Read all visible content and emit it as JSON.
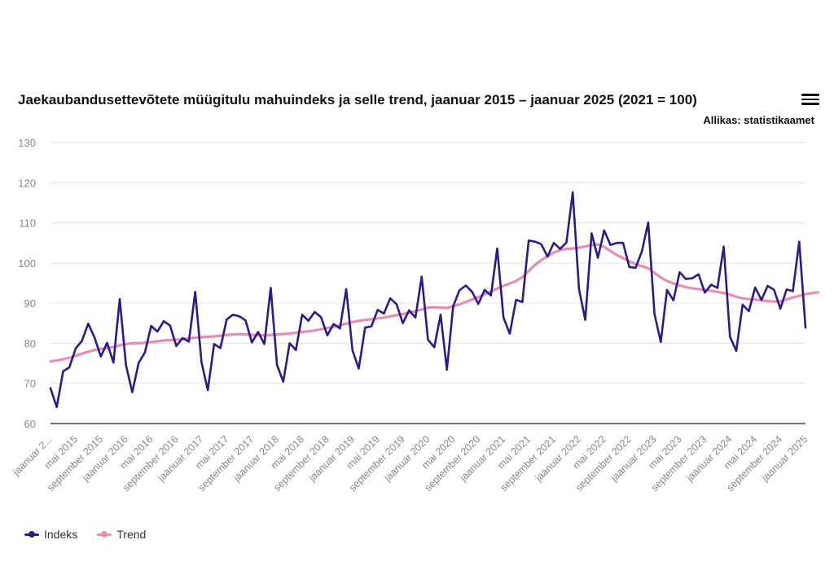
{
  "title": "Jaekaubandusettevõtete müügitulu mahuindeks ja selle trend, jaanuar 2015 – jaanuar 2025 (2021 = 100)",
  "source": "Allikas: statistikaamet",
  "menu_icon": "hamburger-menu-icon",
  "legend": [
    {
      "label": "Indeks",
      "color": "#2e1a87"
    },
    {
      "label": "Trend",
      "color": "#e58fb1"
    }
  ],
  "chart_data": {
    "type": "line",
    "title": "Jaekaubandusettevõtete müügitulu mahuindeks ja selle trend, jaanuar 2015 – jaanuar 2025 (2021 = 100)",
    "xlabel": "",
    "ylabel": "",
    "ylim": [
      60,
      130
    ],
    "yticks": [
      60,
      70,
      80,
      90,
      100,
      110,
      120,
      130
    ],
    "grid": true,
    "legend_position": "bottom-left",
    "x_start": "jaanuar 2015",
    "x_end": "jaanuar 2025",
    "x_tick_labels": [
      "jaanuar 2...",
      "mai 2015",
      "september 2015",
      "jaanuar 2016",
      "mai 2016",
      "september 2016",
      "jaanuar 2017",
      "mai 2017",
      "september 2017",
      "jaanuar 2018",
      "mai 2018",
      "september 2018",
      "jaanuar 2019",
      "mai 2019",
      "september 2019",
      "jaanuar 2020",
      "mai 2020",
      "september 2020",
      "jaanuar 2021",
      "mai 2021",
      "september 2021",
      "jaanuar 2022",
      "mai 2022",
      "september 2022",
      "jaanuar 2023",
      "mai 2023",
      "september 2023",
      "jaanuar 2024",
      "mai 2024",
      "september 2024",
      "jaanuar 2025"
    ],
    "series": [
      {
        "name": "Indeks",
        "color": "#2e1a87",
        "values": [
          68.8,
          64.1,
          73.0,
          74.0,
          78.7,
          80.6,
          84.9,
          81.4,
          76.7,
          80.1,
          75.2,
          91.0,
          74.5,
          67.8,
          75.1,
          77.7,
          84.3,
          82.9,
          85.5,
          84.4,
          79.3,
          81.3,
          80.4,
          92.8,
          75.3,
          68.3,
          79.8,
          78.8,
          85.9,
          87.1,
          86.7,
          85.7,
          80.2,
          82.8,
          79.8,
          93.8,
          74.6,
          70.4,
          80.0,
          78.3,
          87.1,
          85.6,
          87.8,
          86.5,
          82.0,
          84.8,
          83.7,
          93.5,
          78.2,
          73.7,
          83.9,
          84.2,
          88.3,
          87.4,
          91.2,
          89.7,
          85.0,
          88.2,
          86.4,
          96.6,
          80.9,
          79.0,
          87.1,
          73.4,
          89.2,
          93.2,
          94.4,
          92.8,
          89.8,
          93.3,
          91.9,
          103.6,
          86.4,
          82.4,
          90.8,
          90.3,
          105.6,
          105.3,
          104.7,
          101.6,
          105.0,
          103.5,
          105.1,
          117.6,
          93.5,
          85.8,
          107.4,
          101.3,
          108.1,
          104.5,
          105.0,
          105.0,
          99.0,
          98.8,
          102.9,
          110.1,
          87.3,
          80.3,
          93.3,
          90.7,
          97.7,
          96.0,
          96.2,
          97.2,
          92.6,
          94.6,
          93.8,
          104.1,
          81.6,
          78.1,
          89.6,
          88.0,
          93.9,
          90.8,
          94.3,
          93.3,
          88.6,
          93.4,
          93.0,
          105.3,
          83.9
        ]
      },
      {
        "name": "Trend",
        "color": "#e58fb1",
        "values": [
          75.5,
          75.7,
          76.0,
          76.4,
          76.9,
          77.4,
          77.9,
          78.3,
          78.6,
          78.8,
          79.1,
          79.5,
          79.8,
          80.0,
          80.0,
          80.1,
          80.3,
          80.5,
          80.7,
          80.8,
          80.9,
          81.0,
          81.2,
          81.4,
          81.5,
          81.6,
          81.7,
          81.9,
          82.1,
          82.2,
          82.3,
          82.2,
          82.1,
          82.0,
          82.0,
          82.1,
          82.2,
          82.3,
          82.4,
          82.6,
          82.8,
          83.0,
          83.2,
          83.5,
          83.8,
          84.1,
          84.5,
          84.9,
          85.3,
          85.6,
          85.8,
          86.0,
          86.2,
          86.4,
          86.7,
          87.0,
          87.3,
          87.6,
          88.0,
          88.4,
          88.9,
          89.0,
          88.9,
          88.8,
          89.2,
          89.7,
          90.3,
          90.9,
          91.5,
          92.2,
          92.9,
          93.6,
          94.3,
          94.9,
          95.5,
          96.5,
          98.0,
          99.5,
          100.7,
          101.7,
          102.6,
          103.2,
          103.5,
          103.6,
          103.8,
          104.1,
          104.5,
          104.6,
          104.0,
          103.0,
          102.0,
          101.2,
          100.4,
          99.7,
          99.2,
          98.7,
          97.5,
          96.4,
          95.5,
          94.9,
          94.4,
          94.0,
          93.7,
          93.5,
          93.3,
          93.1,
          92.8,
          92.5,
          92.1,
          91.6,
          91.2,
          91.0,
          90.9,
          90.7,
          90.5,
          90.4,
          90.5,
          90.9,
          91.4,
          91.8,
          92.2,
          92.5,
          92.7
        ]
      }
    ]
  }
}
